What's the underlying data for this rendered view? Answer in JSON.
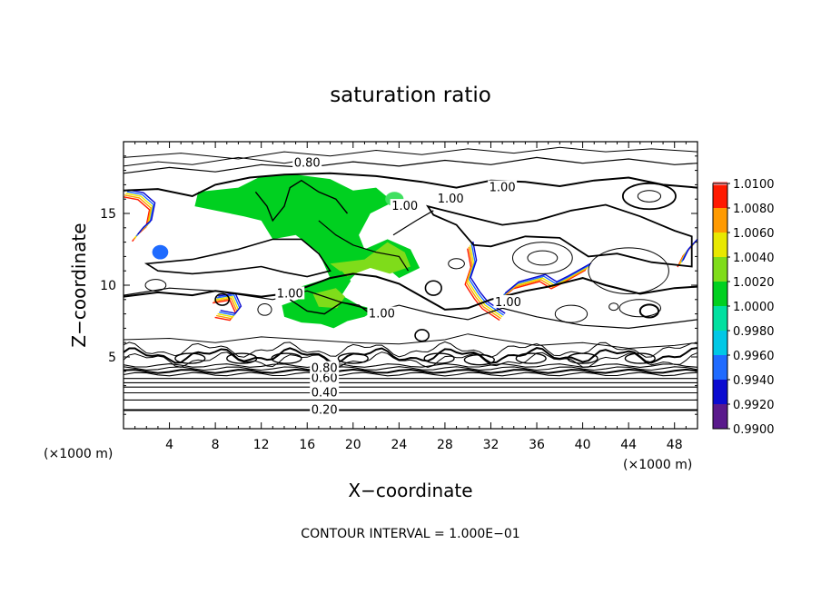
{
  "chart_data": {
    "type": "contour",
    "title": "saturation ratio",
    "xlabel": "X−coordinate",
    "ylabel": "Z−coordinate",
    "x_unit_label": "(×1000 m)",
    "y_unit_label": "(×1000 m)",
    "xlim": [
      0,
      50
    ],
    "ylim": [
      0,
      20
    ],
    "x_ticks": [
      4,
      8,
      12,
      16,
      20,
      24,
      28,
      32,
      36,
      40,
      44,
      48
    ],
    "y_ticks": [
      5,
      10,
      15
    ],
    "footer": "CONTOUR INTERVAL = 1.000E−01",
    "contour_labels": [
      {
        "text": "0.20",
        "x": 17.5,
        "y": 1.3
      },
      {
        "text": "0.40",
        "x": 17.5,
        "y": 2.5
      },
      {
        "text": "0.60",
        "x": 17.5,
        "y": 3.5
      },
      {
        "text": "0.80",
        "x": 17.5,
        "y": 4.2
      },
      {
        "text": "0.80",
        "x": 16.0,
        "y": 18.5
      },
      {
        "text": "1.00",
        "x": 14.5,
        "y": 9.4
      },
      {
        "text": "1.00",
        "x": 22.5,
        "y": 8.0
      },
      {
        "text": "1.00",
        "x": 24.5,
        "y": 15.5
      },
      {
        "text": "1.00",
        "x": 28.5,
        "y": 16.0
      },
      {
        "text": "1.00",
        "x": 33.0,
        "y": 16.8
      },
      {
        "text": "1.00",
        "x": 33.5,
        "y": 8.8
      }
    ],
    "colorbar": {
      "levels": [
        "0.9900",
        "0.9920",
        "0.9940",
        "0.9960",
        "0.9980",
        "1.0000",
        "1.0020",
        "1.0040",
        "1.0060",
        "1.0080",
        "1.0100"
      ],
      "colors": [
        "#5a1a8c",
        "#0b0bd0",
        "#1f6bff",
        "#00c8e6",
        "#00e0a0",
        "#00d020",
        "#7fdc1a",
        "#e8e800",
        "#ff9a00",
        "#ff1a00",
        "#ff8c8c"
      ]
    }
  }
}
